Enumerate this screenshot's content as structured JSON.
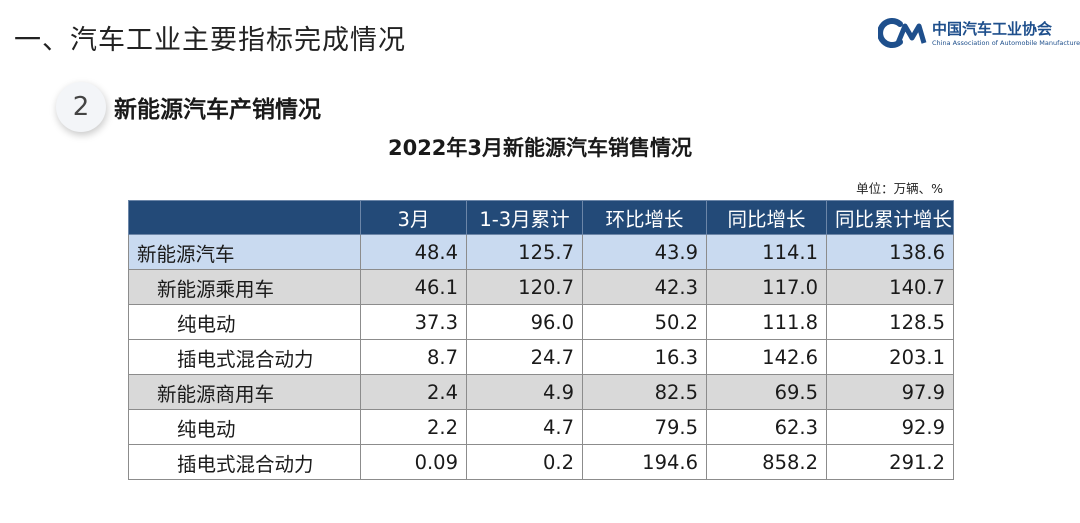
{
  "page_heading": "一、汽车工业主要指标完成情况",
  "logo": {
    "name_cn": "中国汽车工业协会",
    "name_en": "China Association of Automobile Manufacturers"
  },
  "section": {
    "number": "2",
    "title": "新能源汽车产销情况"
  },
  "table": {
    "title": "2022年3月新能源汽车销售情况",
    "unit": "单位：万辆、%",
    "columns": [
      "",
      "3月",
      "1-3月累计",
      "环比增长",
      "同比增长",
      "同比累计增长"
    ],
    "rows": [
      {
        "label": "新能源汽车",
        "level": 0,
        "values": [
          "48.4",
          "125.7",
          "43.9",
          "114.1",
          "138.6"
        ]
      },
      {
        "label": "新能源乘用车",
        "level": 1,
        "values": [
          "46.1",
          "120.7",
          "42.3",
          "117.0",
          "140.7"
        ]
      },
      {
        "label": "纯电动",
        "level": 2,
        "values": [
          "37.3",
          "96.0",
          "50.2",
          "111.8",
          "128.5"
        ]
      },
      {
        "label": "插电式混合动力",
        "level": 2,
        "values": [
          "8.7",
          "24.7",
          "16.3",
          "142.6",
          "203.1"
        ]
      },
      {
        "label": "新能源商用车",
        "level": 1,
        "values": [
          "2.4",
          "4.9",
          "82.5",
          "69.5",
          "97.9"
        ]
      },
      {
        "label": "纯电动",
        "level": 2,
        "values": [
          "2.2",
          "4.7",
          "79.5",
          "62.3",
          "92.9"
        ]
      },
      {
        "label": "插电式混合动力",
        "level": 2,
        "values": [
          "0.09",
          "0.2",
          "194.6",
          "858.2",
          "291.2"
        ]
      }
    ]
  },
  "colors": {
    "header_bg": "#234a78",
    "total_row_bg": "#c9daf0",
    "subtotal_row_bg": "#d9d9d9",
    "brand": "#1e4f8c"
  },
  "icons": {
    "logo_mark": "caam-logo-icon"
  }
}
